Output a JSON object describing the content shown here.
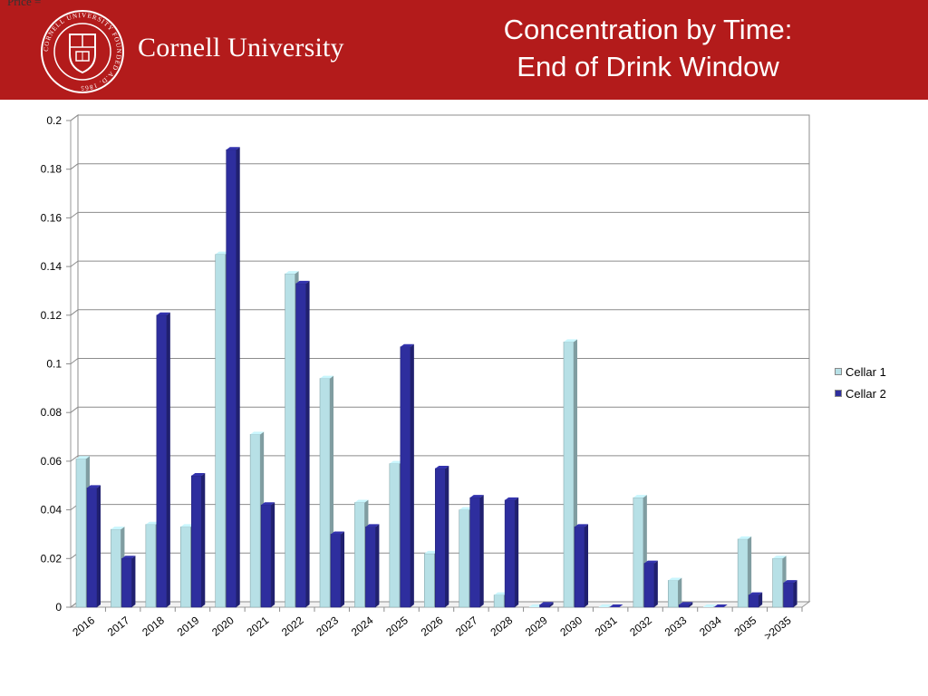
{
  "header": {
    "corner_text": "Price =",
    "brand": "Cornell University",
    "seal_text": "CORNELL UNIVERSITY FOUNDED A.D. 1865",
    "title_line1": "Concentration by Time:",
    "title_line2": "End of Drink Window",
    "colors": {
      "background": "#b31b1b",
      "text": "#ffffff"
    }
  },
  "chart_data": {
    "type": "bar",
    "categories": [
      "2016",
      "2017",
      "2018",
      "2019",
      "2020",
      "2021",
      "2022",
      "2023",
      "2024",
      "2025",
      "2026",
      "2027",
      "2028",
      "2029",
      "2030",
      "2031",
      "2032",
      "2033",
      "2034",
      "2035",
      ">2035"
    ],
    "series": [
      {
        "name": "Cellar 1",
        "color": "#b7e0e6",
        "values": [
          0.061,
          0.032,
          0.034,
          0.033,
          0.145,
          0.071,
          0.137,
          0.094,
          0.043,
          0.059,
          0.022,
          0.04,
          0.005,
          0.0,
          0.109,
          0.0,
          0.045,
          0.011,
          0.0,
          0.028,
          0.02
        ]
      },
      {
        "name": "Cellar 2",
        "color": "#2e2e9e",
        "values": [
          0.049,
          0.02,
          0.12,
          0.054,
          0.188,
          0.042,
          0.133,
          0.03,
          0.033,
          0.107,
          0.057,
          0.045,
          0.044,
          0.001,
          0.033,
          0.0,
          0.018,
          0.001,
          0.0,
          0.005,
          0.01
        ]
      }
    ],
    "ylim": [
      0,
      0.2
    ],
    "yticks": [
      "0",
      "0.02",
      "0.04",
      "0.06",
      "0.08",
      "0.1",
      "0.12",
      "0.14",
      "0.16",
      "0.18",
      "0.2"
    ],
    "title": "",
    "xlabel": "",
    "ylabel": "",
    "grid": true,
    "legend": "right"
  }
}
